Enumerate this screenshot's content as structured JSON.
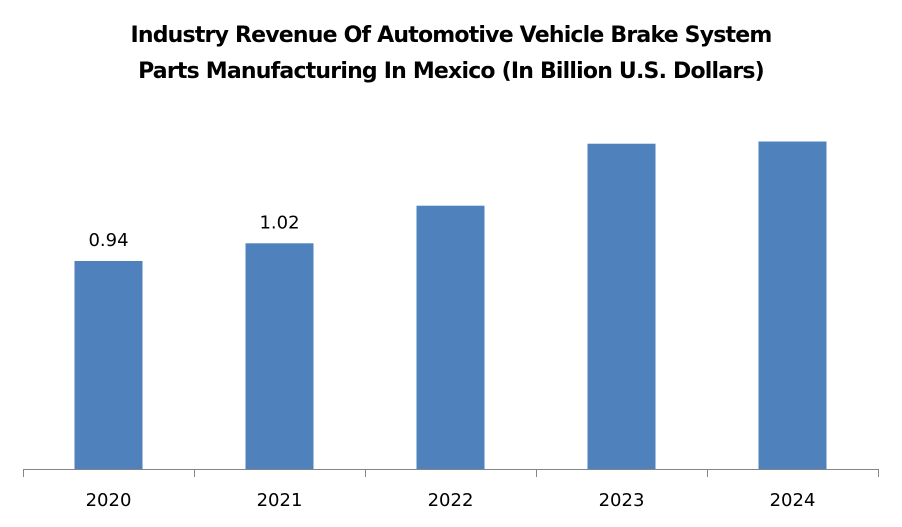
{
  "chart_data": {
    "type": "bar",
    "title_lines": [
      "Industry Revenue Of Automotive Vehicle Brake System",
      "Parts Manufacturing In Mexico (In Billion U.S. Dollars)"
    ],
    "categories": [
      "2020",
      "2021",
      "2022",
      "2023",
      "2024"
    ],
    "values": [
      0.94,
      1.02,
      1.19,
      1.47,
      1.48
    ],
    "data_labels": [
      "0.94",
      "1.02",
      null,
      null,
      null
    ],
    "xlabel": "",
    "ylabel": "",
    "ylim": [
      0,
      1.6
    ],
    "grid": false,
    "legend": "none",
    "bar_color": "#4F81BD",
    "axis_color": "#868686"
  }
}
